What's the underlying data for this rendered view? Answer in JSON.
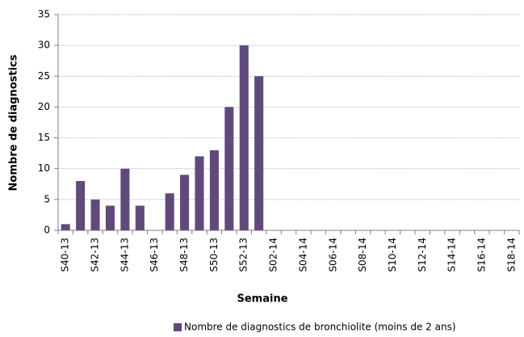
{
  "chart_data": {
    "type": "bar",
    "x_label": "Semaine",
    "y_label": "Nombre de diagnostics",
    "categories": [
      "S40-13",
      null,
      "S42-13",
      null,
      "S44-13",
      null,
      "S46-13",
      null,
      "S48-13",
      null,
      "S50-13",
      null,
      "S52-13",
      null,
      "S02-14",
      null,
      "S04-14",
      null,
      "S06-14",
      null,
      "S08-14",
      null,
      "S10-14",
      null,
      "S12-14",
      null,
      "S14-14",
      null,
      "S16-14",
      null,
      "S18-14"
    ],
    "series": [
      {
        "name": "Nombre de diagnostics de bronchiolite (moins de 2  ans)",
        "color": "#604a7b",
        "values": [
          1,
          8,
          5,
          4,
          10,
          4,
          0,
          6,
          9,
          12,
          13,
          20,
          30,
          25,
          null,
          null,
          null,
          null,
          null,
          null,
          null,
          null,
          null,
          null,
          null,
          null,
          null,
          null,
          null,
          null,
          null
        ]
      }
    ],
    "ylim": [
      0,
      35
    ],
    "yticks": [
      0,
      5,
      10,
      15,
      20,
      25,
      30,
      35
    ],
    "grid": true,
    "legend": "bottom"
  }
}
